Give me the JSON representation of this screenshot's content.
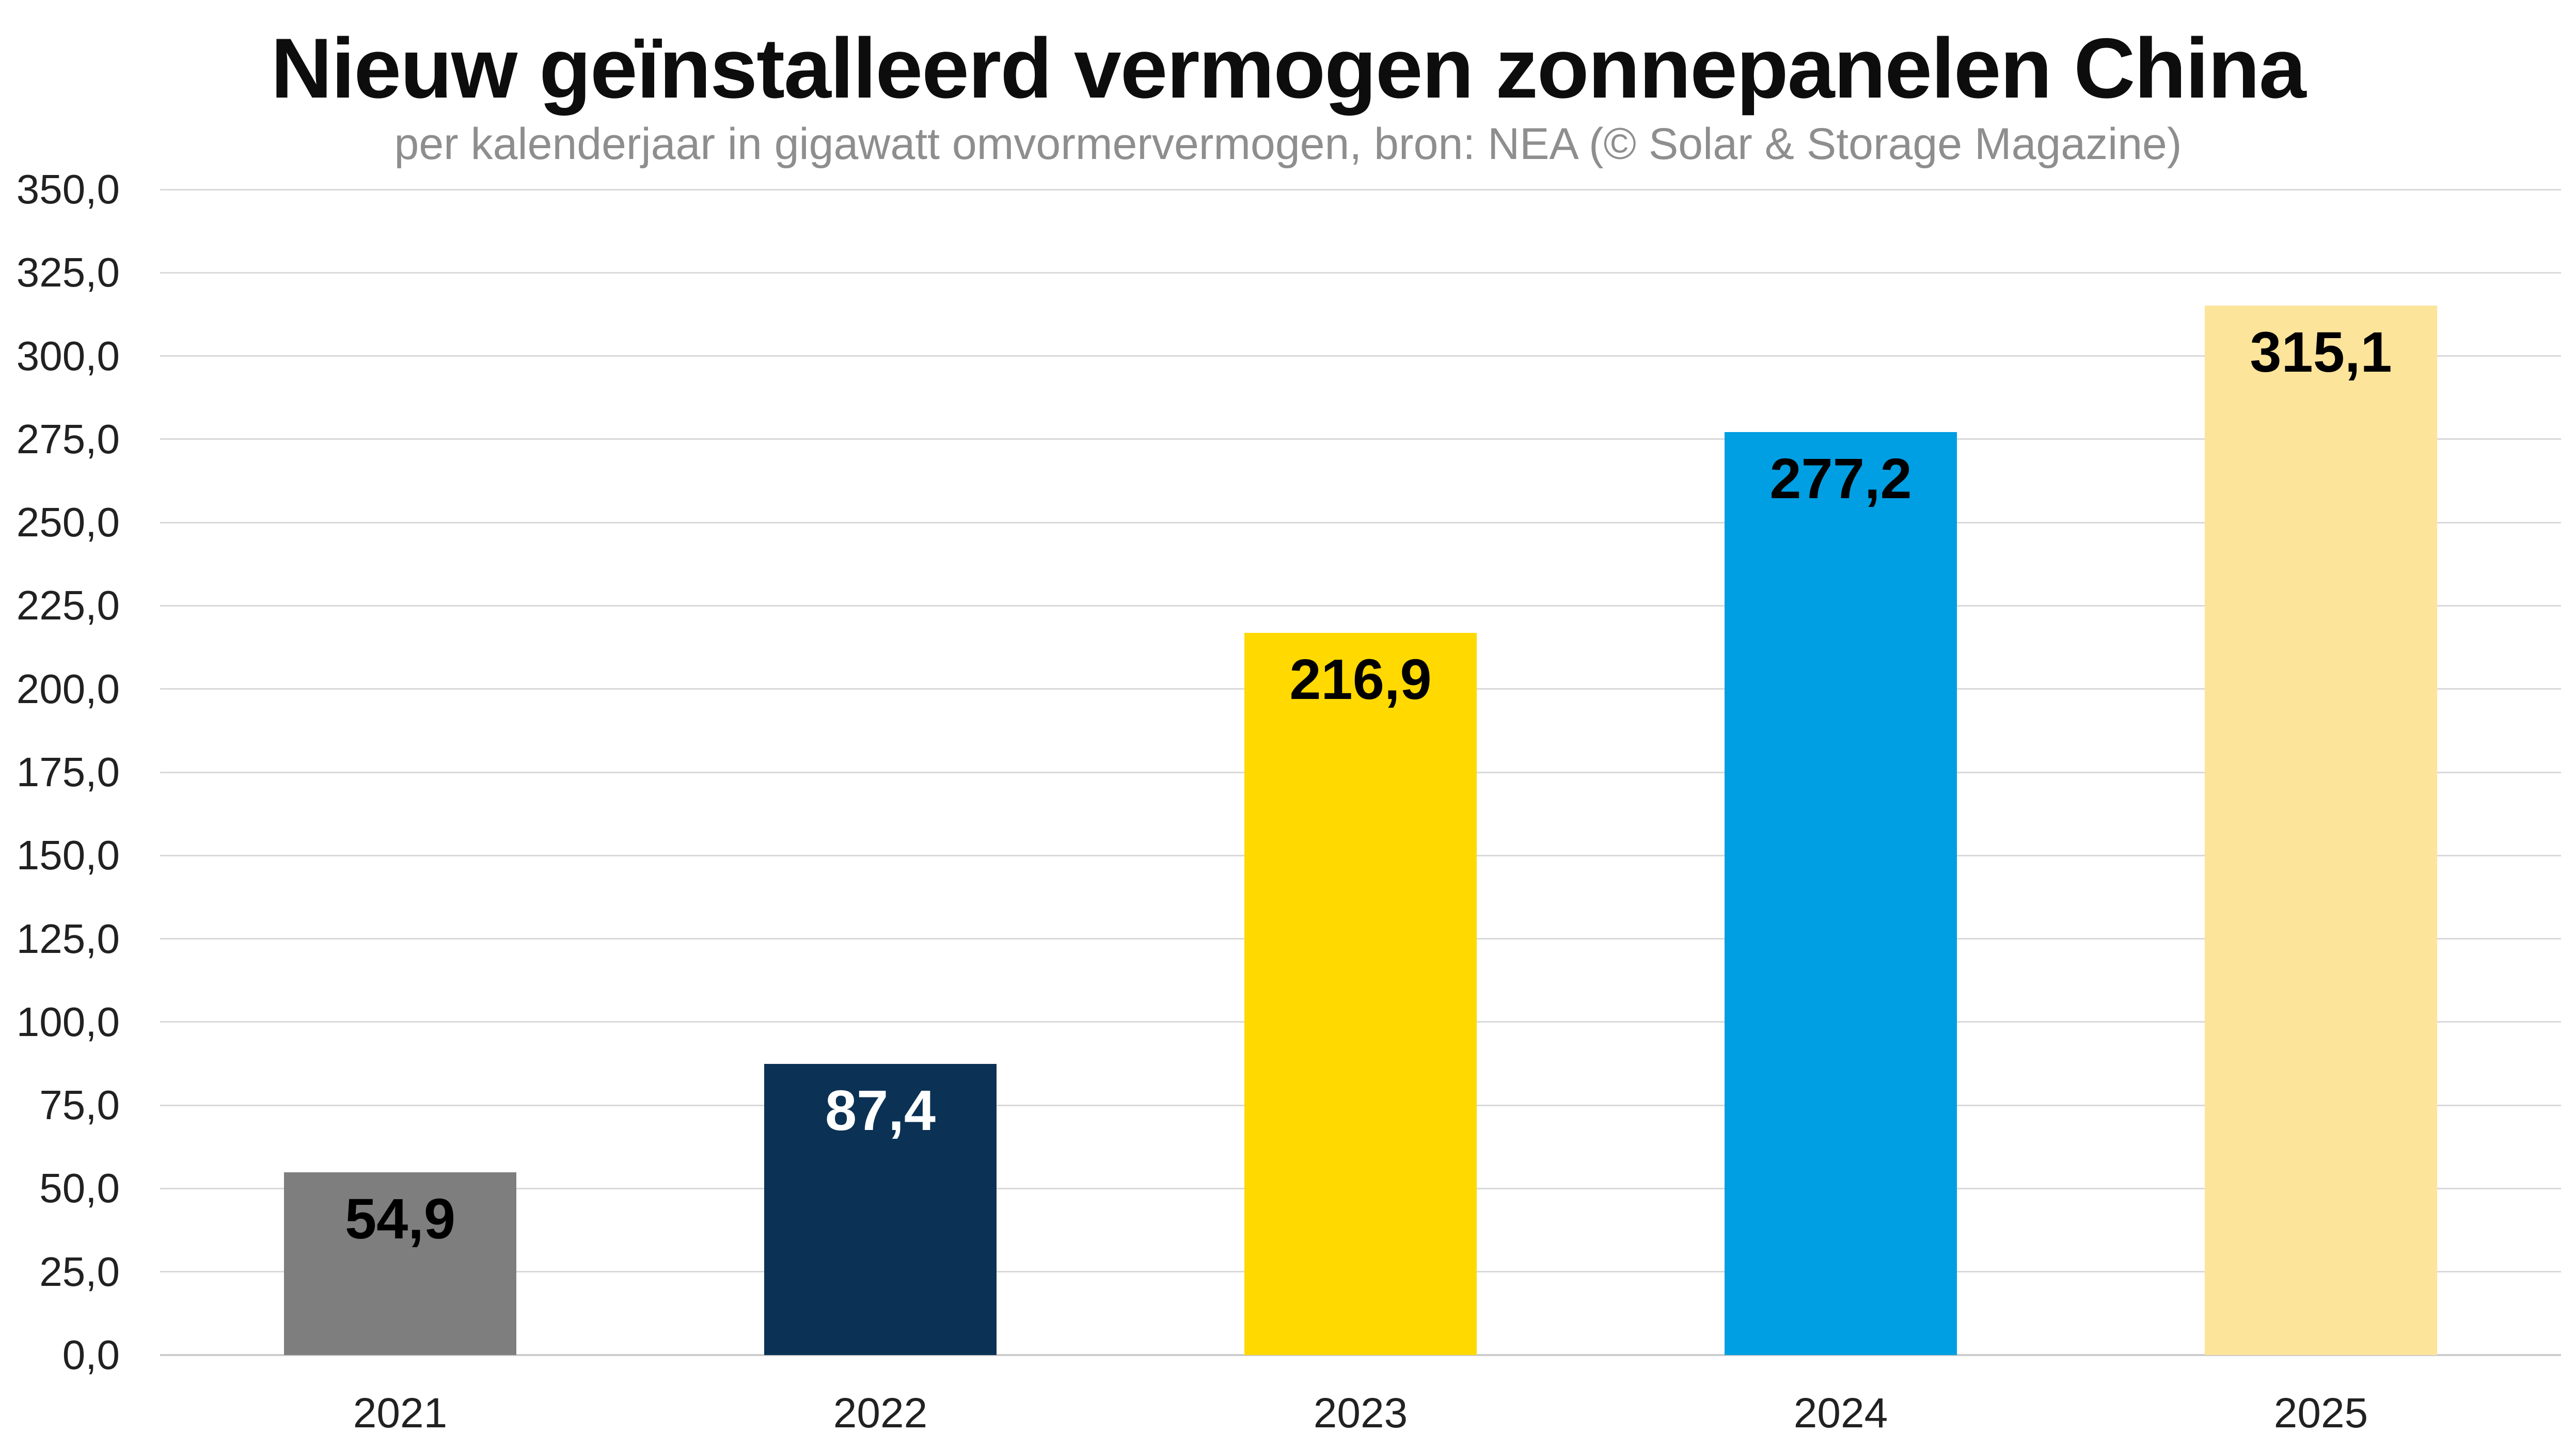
{
  "header": {
    "title": "Nieuw geïnstalleerd vermogen zonnepanelen China",
    "subtitle": "per kalenderjaar in gigawatt omvormervermogen, bron: NEA (© Solar & Storage Magazine)"
  },
  "chart_data": {
    "type": "bar",
    "title": "Nieuw geïnstalleerd vermogen zonnepanelen China",
    "subtitle": "per kalenderjaar in gigawatt omvormervermogen, bron: NEA (© Solar & Storage Magazine)",
    "categories": [
      "2021",
      "2022",
      "2023",
      "2024",
      "2025"
    ],
    "values": [
      54.9,
      87.4,
      216.9,
      277.2,
      315.1
    ],
    "value_labels": [
      "54,9",
      "87,4",
      "216,9",
      "277,2",
      "315,1"
    ],
    "bar_colors": [
      "#7e7e7e",
      "#0b3155",
      "#ffd900",
      "#009ee2",
      "#fde49b"
    ],
    "value_label_colors": [
      "#000000",
      "#ffffff",
      "#000000",
      "#000000",
      "#000000"
    ],
    "xlabel": "",
    "ylabel": "",
    "ylim": [
      0,
      350
    ],
    "ytick_step": 25,
    "ytick_labels": [
      "0,0",
      "25,0",
      "50,0",
      "75,0",
      "100,0",
      "125,0",
      "150,0",
      "175,0",
      "200,0",
      "225,0",
      "250,0",
      "275,0",
      "300,0",
      "325,0",
      "350,0"
    ],
    "grid": "horizontal",
    "gridline_color": "#d9d9d9",
    "axis_line_color": "#cccccc",
    "legend": "none",
    "subtitle_color": "#8e8e8e",
    "value_labels_position": "inside-top"
  }
}
